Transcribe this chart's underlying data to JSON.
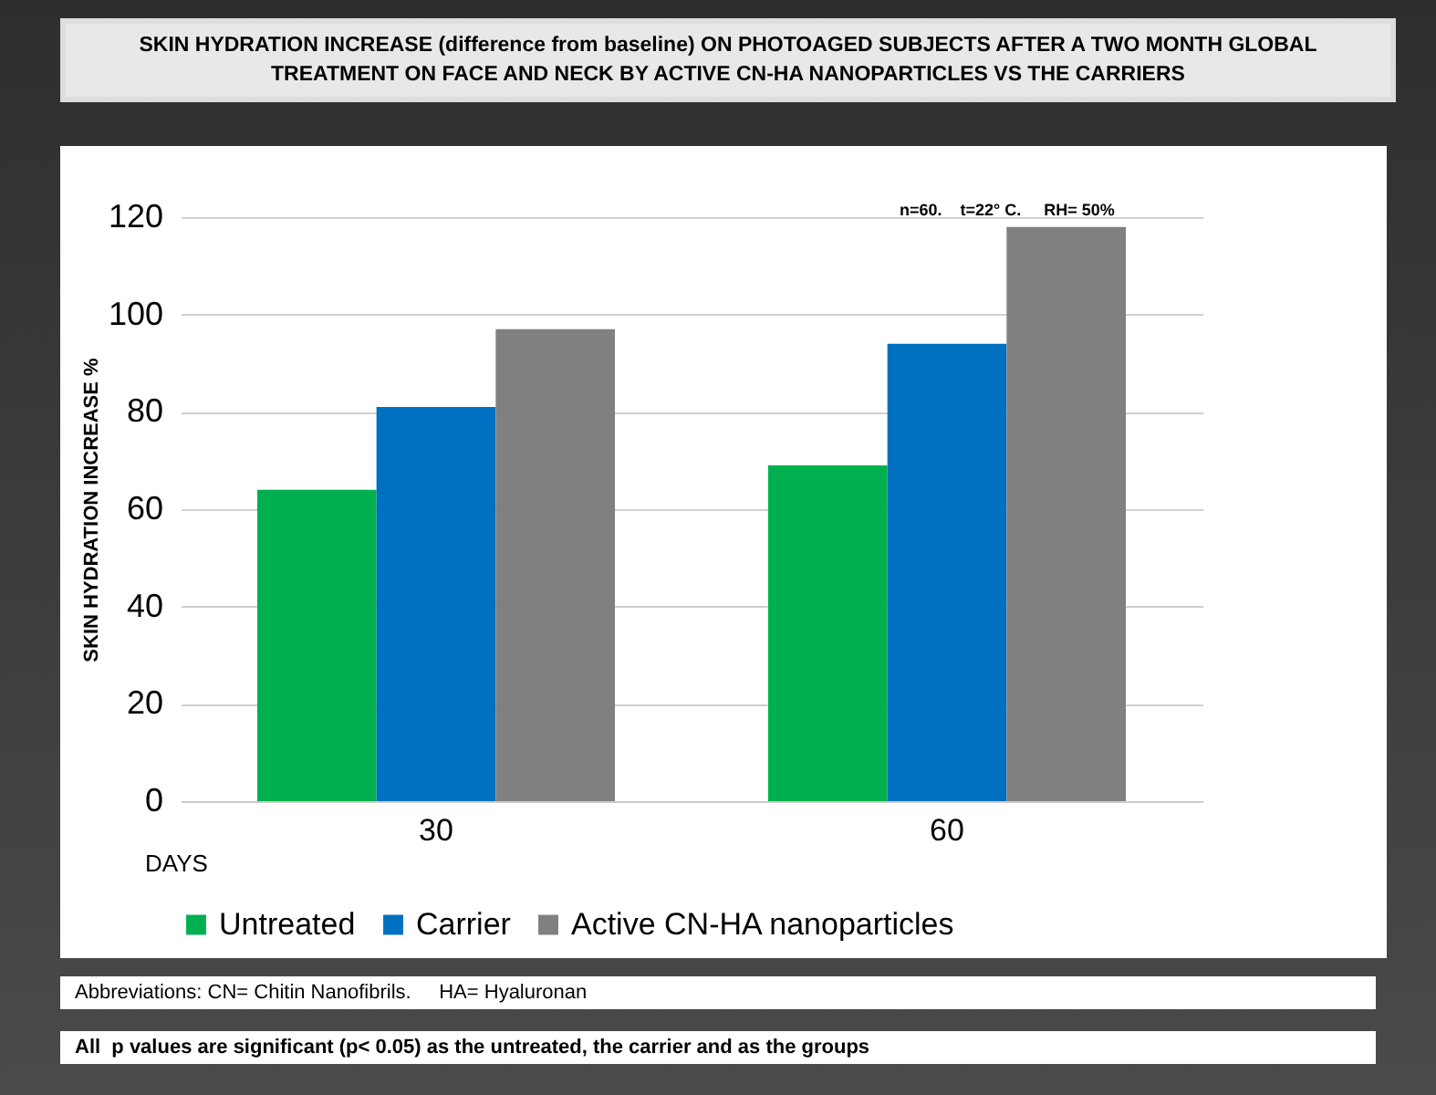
{
  "chart_data": {
    "type": "bar",
    "title": "SKIN HYDRATION INCREASE (difference from baseline) ON PHOTOAGED SUBJECTS AFTER A TWO MONTH GLOBAL TREATMENT ON FACE AND NECK BY ACTIVE  CN-HA NANOPARTICLES VS THE CARRIERS",
    "xlabel": "DAYS",
    "ylabel": "SKIN HYDRATION INCREASE %",
    "categories": [
      "30",
      "60"
    ],
    "series": [
      {
        "name": "Untreated",
        "color": "#00b050",
        "values": [
          64,
          69
        ]
      },
      {
        "name": "Carrier",
        "color": "#0070c0",
        "values": [
          81,
          94
        ]
      },
      {
        "name": "Active CN-HA nanoparticles",
        "color": "#808080",
        "values": [
          97,
          118
        ]
      }
    ],
    "ylim": [
      0,
      120
    ],
    "yticks": [
      0,
      20,
      40,
      60,
      80,
      100,
      120
    ],
    "grid": "y",
    "legend": "bottom",
    "annotations": [
      "n=60.    t=22° C.     RH= 50%",
      "Abbreviations: CN= Chitin Nanofibrils.     HA= Hyaluronan",
      "All  p values are significant (p< 0.05) as the untreated, the carrier and as the groups"
    ]
  }
}
